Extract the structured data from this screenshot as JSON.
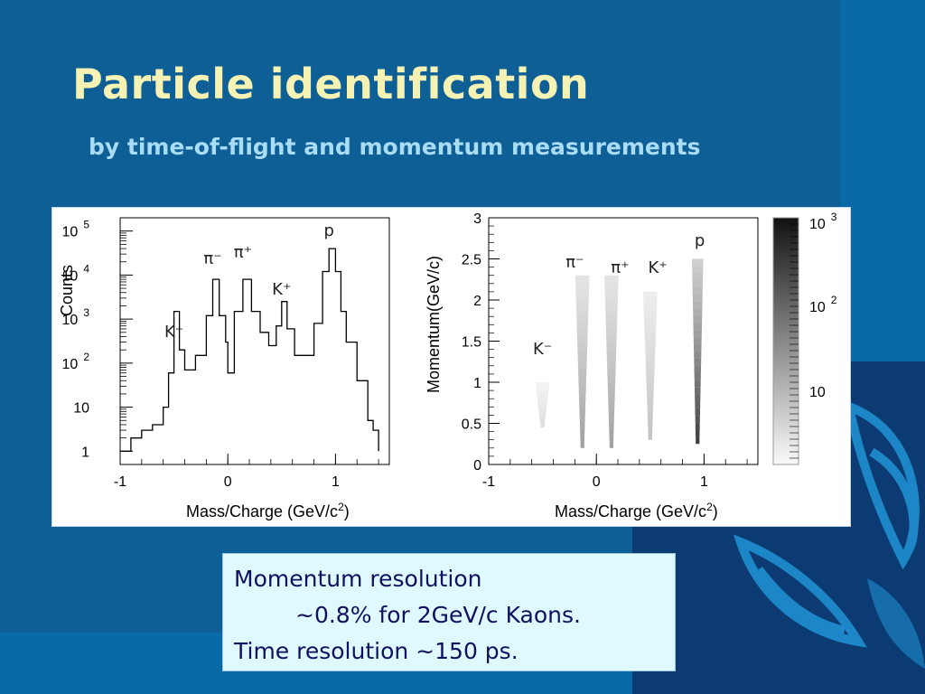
{
  "slide": {
    "title": "Particle identification",
    "subtitle": "by time-of-flight and momentum measurements"
  },
  "colors": {
    "background": "#0e5f96",
    "title": "#f6f2b4",
    "subtitle": "#a9dcf5",
    "info_box_bg": "#dffafe",
    "info_text": "#101060"
  },
  "info_box": {
    "line1": "Momentum resolution",
    "line2": "~0.8% for 2GeV/c Kaons.",
    "line3": "Time resolution ~150 ps."
  },
  "chart_data": [
    {
      "type": "line",
      "title": "",
      "xlabel": "Mass/Charge (GeV/c2)",
      "ylabel": "Counts",
      "xlim": [
        -1,
        1.5
      ],
      "ylim": [
        0.5,
        200000
      ],
      "log_y": true,
      "xticks": [
        "-1",
        "0",
        "1"
      ],
      "yticks": [
        "1",
        "10",
        "10 2",
        "10 3",
        "10 4",
        "10 5"
      ],
      "peak_labels": [
        {
          "label": "K⁻",
          "x": -0.5
        },
        {
          "label": "π⁻",
          "x": -0.14
        },
        {
          "label": "π⁺",
          "x": 0.14
        },
        {
          "label": "K⁺",
          "x": 0.5
        },
        {
          "label": "p",
          "x": 0.94
        }
      ],
      "series": [
        {
          "x": [
            -1.0,
            -0.9,
            -0.8,
            -0.7,
            -0.6,
            -0.55,
            -0.5,
            -0.45,
            -0.4,
            -0.3,
            -0.2,
            -0.14,
            -0.08,
            -0.02,
            0.0,
            0.06,
            0.14,
            0.22,
            0.3,
            0.38,
            0.45,
            0.5,
            0.55,
            0.62,
            0.7,
            0.8,
            0.88,
            0.94,
            1.0,
            1.05,
            1.1,
            1.2,
            1.3,
            1.35,
            1.4
          ],
          "values": [
            1,
            2,
            3,
            4,
            10,
            60,
            1500,
            200,
            70,
            150,
            1200,
            8000,
            1200,
            300,
            60,
            1500,
            8000,
            1500,
            500,
            250,
            700,
            2500,
            600,
            150,
            150,
            800,
            12000,
            40000,
            12000,
            1500,
            300,
            40,
            5,
            3,
            1
          ]
        }
      ]
    },
    {
      "type": "heatmap",
      "title": "",
      "xlabel": "Mass/Charge (GeV/c2)",
      "ylabel": "Momentum(GeV/c)",
      "xlim": [
        -1,
        1.5
      ],
      "ylim": [
        0,
        3
      ],
      "xticks": [
        "-1",
        "0",
        "1"
      ],
      "yticks": [
        "0",
        "0.5",
        "1",
        "1.5",
        "2",
        "2.5",
        "3"
      ],
      "colorbar_ticks": [
        "10",
        "10 2",
        "10 3"
      ],
      "peak_labels": [
        {
          "label": "K⁻",
          "x": -0.5
        },
        {
          "label": "π⁻",
          "x": -0.2
        },
        {
          "label": "π⁺",
          "x": 0.22
        },
        {
          "label": "K⁺",
          "x": 0.57
        },
        {
          "label": "p",
          "x": 0.96
        }
      ],
      "bands": [
        {
          "label": "K⁻",
          "x_center": -0.5,
          "p_min": 0.45,
          "p_max": 1.0,
          "intensity": 0.25
        },
        {
          "label": "π⁻",
          "x_center": -0.13,
          "p_min": 0.2,
          "p_max": 2.3,
          "intensity": 0.55
        },
        {
          "label": "π⁺",
          "x_center": 0.14,
          "p_min": 0.2,
          "p_max": 2.3,
          "intensity": 0.55
        },
        {
          "label": "K⁺",
          "x_center": 0.5,
          "p_min": 0.3,
          "p_max": 2.1,
          "intensity": 0.4
        },
        {
          "label": "p",
          "x_center": 0.94,
          "p_min": 0.25,
          "p_max": 2.5,
          "intensity": 0.9
        }
      ]
    }
  ]
}
